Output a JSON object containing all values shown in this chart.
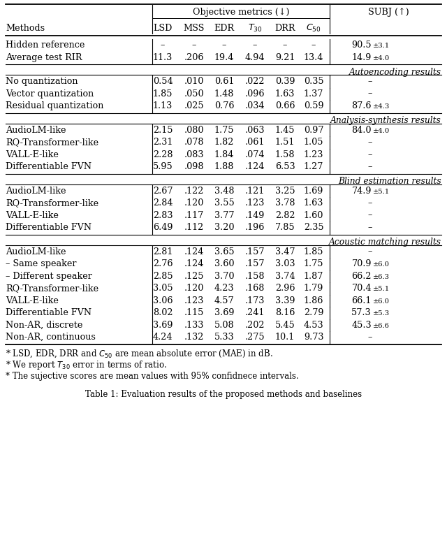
{
  "sections": [
    {
      "label": null,
      "rows": [
        {
          "method": "Hidden reference",
          "lsd": "–",
          "mss": "–",
          "edr": "–",
          "t30": "–",
          "drr": "–",
          "c50": "–",
          "subj": "90.5",
          "err": "3.1"
        },
        {
          "method": "Average test RIR",
          "lsd": "11.3",
          "mss": ".206",
          "edr": "19.4",
          "t30": "4.94",
          "drr": "9.21",
          "c50": "13.4",
          "subj": "14.9",
          "err": "4.0"
        }
      ]
    },
    {
      "label": "Autoencoding results",
      "rows": [
        {
          "method": "No quantization",
          "lsd": "0.54",
          "mss": ".010",
          "edr": "0.61",
          "t30": ".022",
          "drr": "0.39",
          "c50": "0.35",
          "subj": "–",
          "err": ""
        },
        {
          "method": "Vector quantization",
          "lsd": "1.85",
          "mss": ".050",
          "edr": "1.48",
          "t30": ".096",
          "drr": "1.63",
          "c50": "1.37",
          "subj": "–",
          "err": ""
        },
        {
          "method": "Residual quantization",
          "lsd": "1.13",
          "mss": ".025",
          "edr": "0.76",
          "t30": ".034",
          "drr": "0.66",
          "c50": "0.59",
          "subj": "87.6",
          "err": "4.3"
        }
      ]
    },
    {
      "label": "Analysis-synthesis results",
      "rows": [
        {
          "method": "AudioLM-like",
          "lsd": "2.15",
          "mss": ".080",
          "edr": "1.75",
          "t30": ".063",
          "drr": "1.45",
          "c50": "0.97",
          "subj": "84.0",
          "err": "4.0"
        },
        {
          "method": "RQ-Transformer-like",
          "lsd": "2.31",
          "mss": ".078",
          "edr": "1.82",
          "t30": ".061",
          "drr": "1.51",
          "c50": "1.05",
          "subj": "–",
          "err": ""
        },
        {
          "method": "VALL-E-like",
          "lsd": "2.28",
          "mss": ".083",
          "edr": "1.84",
          "t30": ".074",
          "drr": "1.58",
          "c50": "1.23",
          "subj": "–",
          "err": ""
        },
        {
          "method": "Differentiable FVN",
          "lsd": "5.95",
          "mss": ".098",
          "edr": "1.88",
          "t30": ".124",
          "drr": "6.53",
          "c50": "1.27",
          "subj": "–",
          "err": ""
        }
      ]
    },
    {
      "label": "Blind estimation results",
      "rows": [
        {
          "method": "AudioLM-like",
          "lsd": "2.67",
          "mss": ".122",
          "edr": "3.48",
          "t30": ".121",
          "drr": "3.25",
          "c50": "1.69",
          "subj": "74.9",
          "err": "5.1"
        },
        {
          "method": "RQ-Transformer-like",
          "lsd": "2.84",
          "mss": ".120",
          "edr": "3.55",
          "t30": ".123",
          "drr": "3.78",
          "c50": "1.63",
          "subj": "–",
          "err": ""
        },
        {
          "method": "VALL-E-like",
          "lsd": "2.83",
          "mss": ".117",
          "edr": "3.77",
          "t30": ".149",
          "drr": "2.82",
          "c50": "1.60",
          "subj": "–",
          "err": ""
        },
        {
          "method": "Differentiable FVN",
          "lsd": "6.49",
          "mss": ".112",
          "edr": "3.20",
          "t30": ".196",
          "drr": "7.85",
          "c50": "2.35",
          "subj": "–",
          "err": ""
        }
      ]
    },
    {
      "label": "Acoustic matching results",
      "rows": [
        {
          "method": "AudioLM-like",
          "lsd": "2.81",
          "mss": ".124",
          "edr": "3.65",
          "t30": ".157",
          "drr": "3.47",
          "c50": "1.85",
          "subj": "–",
          "err": ""
        },
        {
          "method": "– Same speaker",
          "lsd": "2.76",
          "mss": ".124",
          "edr": "3.60",
          "t30": ".157",
          "drr": "3.03",
          "c50": "1.75",
          "subj": "70.9",
          "err": "6.0"
        },
        {
          "method": "– Different speaker",
          "lsd": "2.85",
          "mss": ".125",
          "edr": "3.70",
          "t30": ".158",
          "drr": "3.74",
          "c50": "1.87",
          "subj": "66.2",
          "err": "6.3"
        },
        {
          "method": "RQ-Transformer-like",
          "lsd": "3.05",
          "mss": ".120",
          "edr": "4.23",
          "t30": ".168",
          "drr": "2.96",
          "c50": "1.79",
          "subj": "70.4",
          "err": "5.1"
        },
        {
          "method": "VALL-E-like",
          "lsd": "3.06",
          "mss": ".123",
          "edr": "4.57",
          "t30": ".173",
          "drr": "3.39",
          "c50": "1.86",
          "subj": "66.1",
          "err": "6.0"
        },
        {
          "method": "Differentiable FVN",
          "lsd": "8.02",
          "mss": ".115",
          "edr": "3.69",
          "t30": ".241",
          "drr": "8.16",
          "c50": "2.79",
          "subj": "57.3",
          "err": "5.3"
        },
        {
          "method": "Non-AR, discrete",
          "lsd": "3.69",
          "mss": ".133",
          "edr": "5.08",
          "t30": ".202",
          "drr": "5.45",
          "c50": "4.53",
          "subj": "45.3",
          "err": "6.6"
        },
        {
          "method": "Non-AR, continuous",
          "lsd": "4.24",
          "mss": ".132",
          "edr": "5.33",
          "t30": ".275",
          "drr": "10.1",
          "c50": "9.73",
          "subj": "–",
          "err": ""
        }
      ]
    }
  ]
}
